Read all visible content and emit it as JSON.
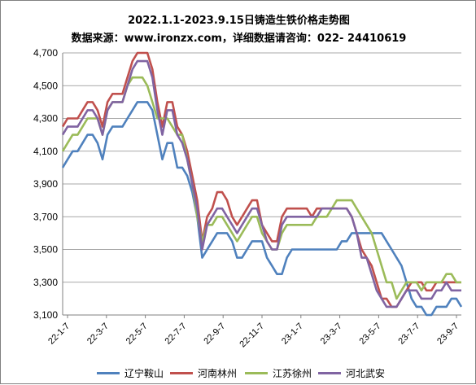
{
  "chart_data": {
    "type": "line",
    "title": "2022.1.1-2023.9.15日铸造生铁价格走势图",
    "subtitle": "数据来源：www.ironzx.com，详细数据请咨询：022- 24410619",
    "ylim": [
      3100,
      4700
    ],
    "y_ticks": [
      "4,700",
      "4,500",
      "4,300",
      "4,100",
      "3,900",
      "3,700",
      "3,500",
      "3,300",
      "3,100"
    ],
    "y_tick_values": [
      4700,
      4500,
      4300,
      4100,
      3900,
      3700,
      3500,
      3300,
      3100
    ],
    "x_ticks": [
      "22-1-7",
      "22-3-7",
      "22-5-7",
      "22-7-7",
      "22-9-7",
      "22-11-7",
      "23-1-7",
      "23-3-7",
      "23-5-7",
      "23-7-7",
      "23-9-7"
    ],
    "grid": true,
    "legend_position": "bottom",
    "x_count": 81,
    "series": [
      {
        "name": "辽宁鞍山",
        "color": "#4f81bd",
        "values": [
          4000,
          4050,
          4100,
          4100,
          4150,
          4200,
          4200,
          4150,
          4050,
          4200,
          4250,
          4250,
          4250,
          4300,
          4350,
          4400,
          4400,
          4400,
          4350,
          4200,
          4050,
          4150,
          4150,
          4000,
          4000,
          3950,
          3850,
          3700,
          3450,
          3500,
          3550,
          3600,
          3600,
          3600,
          3550,
          3450,
          3450,
          3500,
          3550,
          3550,
          3550,
          3450,
          3400,
          3350,
          3350,
          3450,
          3500,
          3500,
          3500,
          3500,
          3500,
          3500,
          3500,
          3500,
          3500,
          3500,
          3550,
          3550,
          3600,
          3600,
          3600,
          3600,
          3600,
          3600,
          3600,
          3550,
          3500,
          3450,
          3400,
          3300,
          3200,
          3150,
          3150,
          3100,
          3100,
          3150,
          3150,
          3150,
          3200,
          3200,
          3150
        ]
      },
      {
        "name": "河南林州",
        "color": "#c0504d",
        "values": [
          4250,
          4300,
          4300,
          4300,
          4350,
          4400,
          4400,
          4350,
          4250,
          4400,
          4450,
          4450,
          4450,
          4550,
          4650,
          4700,
          4700,
          4700,
          4600,
          4400,
          4250,
          4400,
          4400,
          4250,
          4200,
          4100,
          3950,
          3800,
          3550,
          3700,
          3750,
          3850,
          3850,
          3800,
          3700,
          3650,
          3700,
          3750,
          3800,
          3800,
          3650,
          3600,
          3550,
          3550,
          3700,
          3750,
          3750,
          3750,
          3750,
          3750,
          3700,
          3750,
          3750,
          3750,
          3750,
          3750,
          3750,
          3750,
          3700,
          3600,
          3500,
          3450,
          3400,
          3300,
          3200,
          3200,
          3150,
          3150,
          3200,
          3250,
          3300,
          3300,
          3300,
          3250,
          3250,
          3300,
          3300,
          3300,
          3300,
          3300,
          3300
        ]
      },
      {
        "name": "江苏徐州",
        "color": "#9bbb59",
        "values": [
          4100,
          4150,
          4200,
          4200,
          4250,
          4300,
          4300,
          4300,
          4200,
          4350,
          4400,
          4400,
          4400,
          4500,
          4550,
          4550,
          4550,
          4500,
          4400,
          4300,
          4300,
          4300,
          4250,
          4200,
          4200,
          4050,
          3900,
          3700,
          3550,
          3650,
          3650,
          3700,
          3700,
          3650,
          3600,
          3550,
          3600,
          3650,
          3700,
          3700,
          3600,
          3550,
          3500,
          3500,
          3600,
          3650,
          3650,
          3650,
          3650,
          3650,
          3650,
          3700,
          3700,
          3700,
          3750,
          3800,
          3800,
          3800,
          3800,
          3750,
          3700,
          3650,
          3600,
          3500,
          3400,
          3300,
          3300,
          3200,
          3250,
          3300,
          3300,
          3300,
          3250,
          3300,
          3300,
          3300,
          3300,
          3350,
          3350,
          3300,
          3300
        ]
      },
      {
        "name": "河北武安",
        "color": "#8064a2",
        "values": [
          4200,
          4250,
          4250,
          4250,
          4300,
          4350,
          4350,
          4300,
          4200,
          4350,
          4400,
          4400,
          4400,
          4500,
          4600,
          4650,
          4650,
          4650,
          4550,
          4350,
          4200,
          4350,
          4350,
          4200,
          4150,
          4050,
          3900,
          3750,
          3500,
          3650,
          3700,
          3750,
          3750,
          3700,
          3650,
          3600,
          3650,
          3700,
          3750,
          3750,
          3650,
          3550,
          3500,
          3500,
          3650,
          3700,
          3700,
          3700,
          3700,
          3700,
          3700,
          3700,
          3750,
          3750,
          3750,
          3750,
          3750,
          3750,
          3700,
          3600,
          3450,
          3450,
          3350,
          3250,
          3200,
          3150,
          3150,
          3150,
          3200,
          3250,
          3250,
          3250,
          3200,
          3200,
          3200,
          3250,
          3250,
          3300,
          3250,
          3250,
          3250
        ]
      }
    ]
  }
}
